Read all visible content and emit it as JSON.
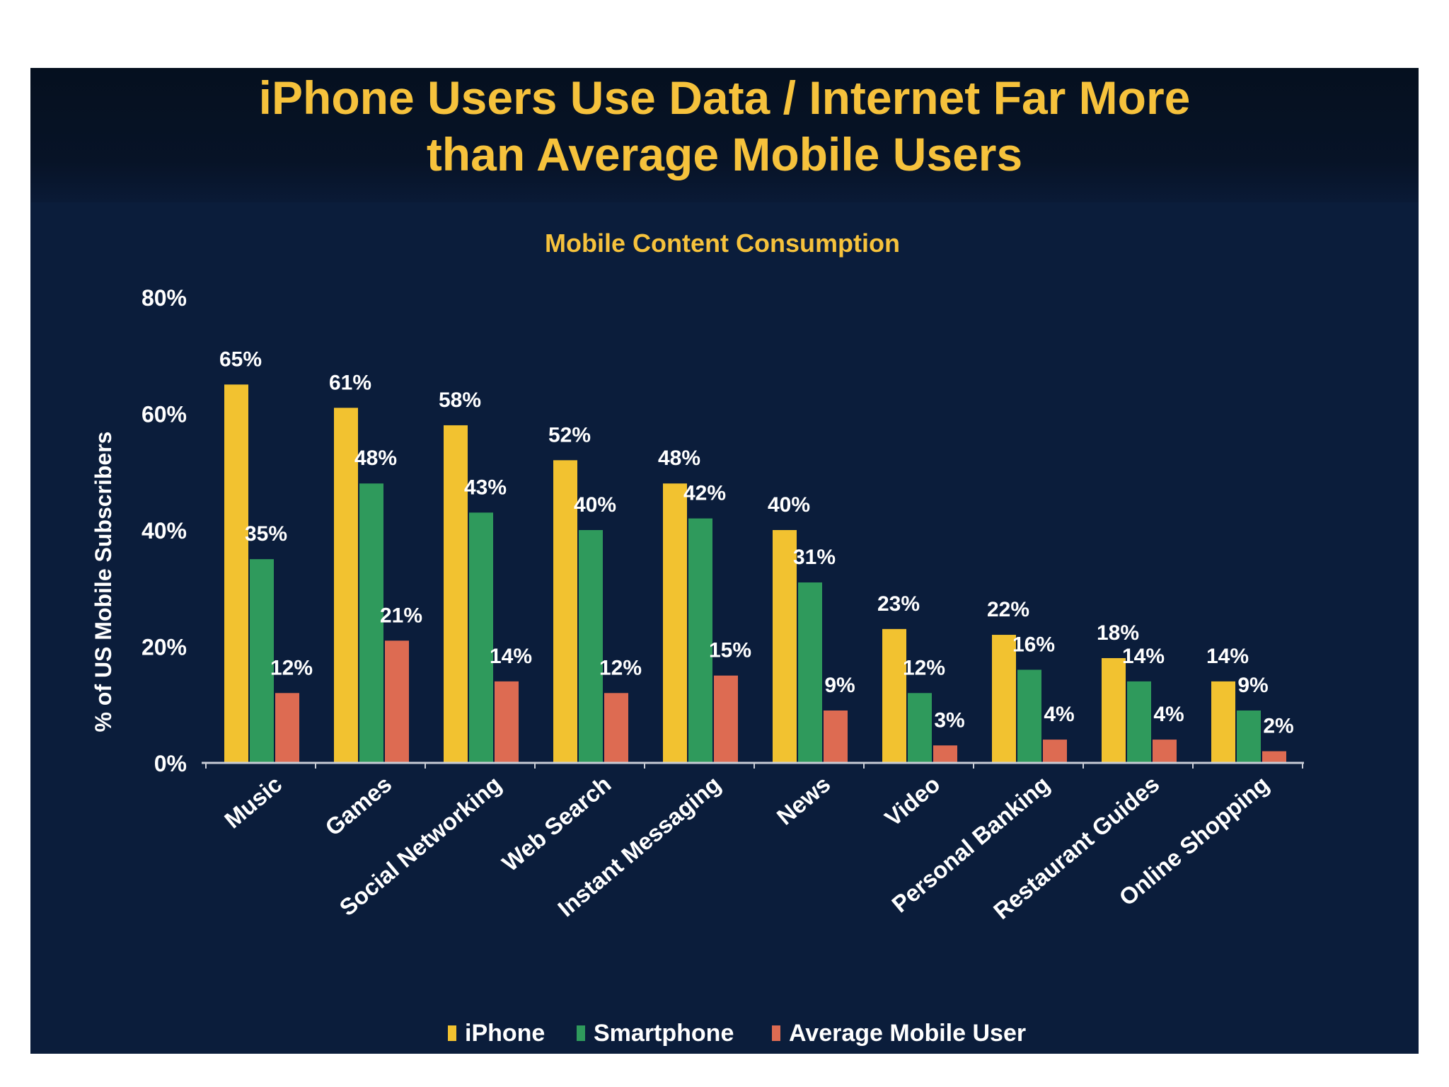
{
  "slide_title": {
    "line1": "iPhone Users Use Data / Internet Far More",
    "line2": "than Average Mobile Users"
  },
  "colors": {
    "background": "#0b1d3b",
    "title": "#f6c23c",
    "iphone": "#f2c230",
    "smartphone": "#2f9a5c",
    "average": "#dd6b52"
  },
  "chart_data": {
    "type": "bar",
    "title": "Mobile Content Consumption",
    "xlabel": "",
    "ylabel": "% of US Mobile Subscribers",
    "ylim": [
      0,
      80
    ],
    "yticks": [
      "0%",
      "20%",
      "40%",
      "60%",
      "80%"
    ],
    "ytick_values": [
      0,
      20,
      40,
      60,
      80
    ],
    "grid": false,
    "legend_position": "bottom",
    "categories": [
      "Music",
      "Games",
      "Social Networking",
      "Web Search",
      "Instant Messaging",
      "News",
      "Video",
      "Personal Banking",
      "Restaurant Guides",
      "Online Shopping"
    ],
    "series": [
      {
        "name": "iPhone",
        "color": "#f2c230",
        "values": [
          65,
          61,
          58,
          52,
          48,
          40,
          23,
          22,
          18,
          14
        ],
        "labels": [
          "65%",
          "61%",
          "58%",
          "52%",
          "48%",
          "40%",
          "23%",
          "22%",
          "18%",
          "14%"
        ]
      },
      {
        "name": "Smartphone",
        "color": "#2f9a5c",
        "values": [
          35,
          48,
          43,
          40,
          42,
          31,
          12,
          16,
          14,
          9
        ],
        "labels": [
          "35%",
          "48%",
          "43%",
          "40%",
          "42%",
          "31%",
          "12%",
          "16%",
          "14%",
          "9%"
        ]
      },
      {
        "name": "Average Mobile User",
        "color": "#dd6b52",
        "values": [
          12,
          21,
          14,
          12,
          15,
          9,
          3,
          4,
          4,
          2
        ],
        "labels": [
          "12%",
          "21%",
          "14%",
          "12%",
          "15%",
          "9%",
          "3%",
          "4%",
          "4%",
          "2%"
        ]
      }
    ]
  }
}
